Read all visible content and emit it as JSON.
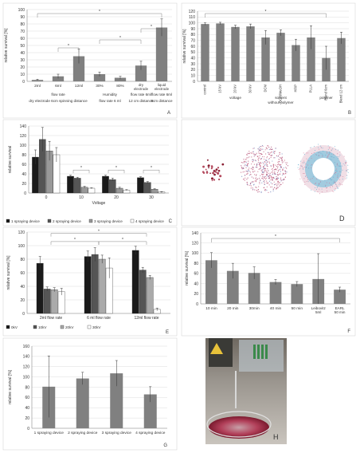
{
  "chart_data": [
    {
      "panel": "A",
      "type": "bar",
      "ylabel": "relative survival [%]",
      "ylim": [
        0,
        100
      ],
      "yticks": [
        0,
        10,
        20,
        30,
        40,
        50,
        60,
        70,
        80,
        90,
        100
      ],
      "categories": [
        "2ml",
        "6ml",
        "12ml",
        "30%",
        "80%",
        "dry electrode",
        "liquid electrode"
      ],
      "values": [
        2,
        7,
        35,
        10,
        5,
        22,
        75
      ],
      "errors": [
        1,
        3,
        10,
        3,
        2,
        6,
        12
      ],
      "groups": [
        {
          "label": "flow rate",
          "sub": "dry electrode 6cm spinning distance"
        },
        {
          "label": "Humidity",
          "sub": "flow rate 6 ml"
        },
        {
          "label": "flow rate 6ml",
          "sub": "12 cm distance"
        },
        {
          "label": "flow rate 6ml",
          "sub": "6cm distance"
        }
      ],
      "annotations": [
        "*",
        "*",
        "*",
        "*"
      ],
      "bar_color": "#808080"
    },
    {
      "panel": "B",
      "type": "bar",
      "ylabel": "relative survival [%]",
      "ylim": [
        0,
        120
      ],
      "yticks": [
        0,
        10,
        20,
        30,
        40,
        50,
        60,
        70,
        80,
        90,
        100,
        110,
        120
      ],
      "categories": [
        "control",
        "15 kV",
        "20 kV",
        "30 kV",
        "DCM",
        "DCM/MeOH",
        "HFIP",
        "PLLA",
        "Blend 6cm",
        "Blend 12 cm"
      ],
      "values": [
        98,
        99,
        93,
        94,
        75,
        83,
        62,
        75,
        40,
        74
      ],
      "errors": [
        2,
        2,
        3,
        4,
        12,
        5,
        10,
        20,
        20,
        10
      ],
      "groups": [
        "voltage",
        "solvent without polymer",
        "polymer"
      ],
      "annotations": [
        "*"
      ],
      "bar_color": "#808080"
    },
    {
      "panel": "C",
      "type": "bar",
      "xlabel": "Voltage",
      "ylabel": "relative survival",
      "ylim": [
        0,
        140
      ],
      "yticks": [
        0,
        20,
        40,
        60,
        80,
        100,
        120,
        140
      ],
      "categories": [
        "0",
        "10",
        "20",
        "30"
      ],
      "series": [
        {
          "name": "1 spraying device",
          "values": [
            75,
            35,
            35,
            32
          ],
          "errors": [
            15,
            2,
            2,
            2
          ]
        },
        {
          "name": "2 spraying device",
          "values": [
            112,
            31,
            28,
            22
          ],
          "errors": [
            25,
            2,
            3,
            2
          ]
        },
        {
          "name": "3 spraying device",
          "values": [
            88,
            12,
            10,
            8
          ],
          "errors": [
            20,
            2,
            2,
            1
          ]
        },
        {
          "name": "4 spraying device",
          "values": [
            80,
            10,
            6,
            2
          ],
          "errors": [
            15,
            1,
            1,
            1
          ]
        }
      ],
      "annotations": [
        "*",
        "*",
        "*"
      ],
      "colors": [
        "#1a1a1a",
        "#555555",
        "#999999",
        "#ffffff"
      ]
    },
    {
      "panel": "E",
      "type": "bar",
      "ylabel": "relative survival [%]",
      "ylim": [
        0,
        120
      ],
      "yticks": [
        0,
        20,
        40,
        60,
        80,
        100,
        120
      ],
      "categories": [
        "2ml flow rate",
        "6 ml flow rate",
        "12ml flow rate"
      ],
      "series": [
        {
          "name": "0kV",
          "values": [
            74,
            84,
            93
          ],
          "errors": [
            10,
            8,
            6
          ]
        },
        {
          "name": "10kV",
          "values": [
            36,
            87,
            64
          ],
          "errors": [
            3,
            10,
            4
          ]
        },
        {
          "name": "20kV",
          "values": [
            35,
            80,
            53
          ],
          "errors": [
            3,
            6,
            3
          ]
        },
        {
          "name": "30kV",
          "values": [
            32,
            67,
            6
          ],
          "errors": [
            5,
            15,
            2
          ]
        }
      ],
      "annotations": [
        "*",
        "*",
        "*"
      ],
      "colors": [
        "#1a1a1a",
        "#555555",
        "#aaaaaa",
        "#ffffff"
      ]
    },
    {
      "panel": "F",
      "type": "bar",
      "ylabel": "relative survival [%]",
      "ylim": [
        0,
        140
      ],
      "yticks": [
        0,
        20,
        40,
        60,
        80,
        100,
        120,
        140
      ],
      "categories": [
        "10 min",
        "20 min",
        "30min",
        "40 min",
        "50 min",
        "Leibovitz 5ml",
        "EARL 50 min"
      ],
      "values": [
        86,
        65,
        61,
        43,
        39,
        49,
        28
      ],
      "errors": [
        15,
        15,
        12,
        5,
        5,
        50,
        5
      ],
      "annotations": [
        "*"
      ],
      "bar_color": "#808080"
    },
    {
      "panel": "G",
      "type": "bar",
      "ylabel": "relative survival [%]",
      "ylim": [
        0,
        160
      ],
      "yticks": [
        0,
        20,
        40,
        60,
        80,
        100,
        120,
        140,
        160
      ],
      "categories": [
        "1 spraying device",
        "2 spraying device",
        "3 spraying device",
        "4 spraying device"
      ],
      "values": [
        81,
        97,
        107,
        66
      ],
      "errors": [
        60,
        12,
        25,
        15
      ],
      "bar_color": "#808080"
    }
  ],
  "panel_letters": {
    "A": "A",
    "B": "B",
    "C": "C",
    "D": "D",
    "E": "E",
    "F": "F",
    "G": "G",
    "H": "H"
  }
}
